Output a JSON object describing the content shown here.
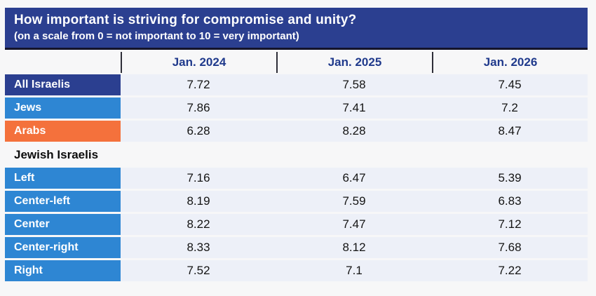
{
  "header": {
    "title": "How important is striving for compromise and unity?",
    "subtitle": "(on a scale from 0 = not important to 10 = very important)"
  },
  "columns": [
    "Jan. 2024",
    "Jan. 2025",
    "Jan. 2026"
  ],
  "rows": [
    {
      "label": "All Israelis",
      "type": "data",
      "label_color": "#2b3f90",
      "values": [
        "7.72",
        "7.58",
        "7.45"
      ]
    },
    {
      "label": "Jews",
      "type": "data",
      "label_color": "#2e86d3",
      "values": [
        "7.86",
        "7.41",
        "7.2"
      ]
    },
    {
      "label": "Arabs",
      "type": "data",
      "label_color": "#f4713c",
      "values": [
        "6.28",
        "8.28",
        "8.47"
      ]
    },
    {
      "label": "Jewish Israelis",
      "type": "section",
      "label_color": "none",
      "values": []
    },
    {
      "label": "Left",
      "type": "data",
      "label_color": "#2e86d3",
      "values": [
        "7.16",
        "6.47",
        "5.39"
      ]
    },
    {
      "label": "Center-left",
      "type": "data",
      "label_color": "#2e86d3",
      "values": [
        "8.19",
        "7.59",
        "6.83"
      ]
    },
    {
      "label": "Center",
      "type": "data",
      "label_color": "#2e86d3",
      "values": [
        "8.22",
        "7.47",
        "7.12"
      ]
    },
    {
      "label": "Center-right",
      "type": "data",
      "label_color": "#2e86d3",
      "values": [
        "8.33",
        "8.12",
        "7.68"
      ]
    },
    {
      "label": "Right",
      "type": "data",
      "label_color": "#2e86d3",
      "values": [
        "7.52",
        "7.1",
        "7.22"
      ]
    }
  ],
  "colors": {
    "banner_background": "#2b3f90",
    "banner_text": "#ffffff",
    "column_header_text": "#203a8c",
    "column_divider": "#2e2e38",
    "data_cell_background": "#edf0f8",
    "page_background": "#f7f7f8",
    "navy_row": "#2b3f90",
    "blue_row": "#2e86d3",
    "orange_row": "#f4713c"
  },
  "chart_data": {
    "type": "table",
    "title": "How important is striving for compromise and unity?",
    "subtitle": "(on a scale from 0 = not important to 10 = very important)",
    "scale": {
      "min": 0,
      "min_label": "not important",
      "max": 10,
      "max_label": "very important"
    },
    "columns": [
      "Jan. 2024",
      "Jan. 2025",
      "Jan. 2026"
    ],
    "rows": [
      {
        "label": "All Israelis",
        "group": "overall",
        "values": [
          7.72,
          7.58,
          7.45
        ]
      },
      {
        "label": "Jews",
        "group": "overall",
        "values": [
          7.86,
          7.41,
          7.2
        ]
      },
      {
        "label": "Arabs",
        "group": "overall",
        "values": [
          6.28,
          8.28,
          8.47
        ]
      },
      {
        "label": "Left",
        "group": "Jewish Israelis",
        "values": [
          7.16,
          6.47,
          5.39
        ]
      },
      {
        "label": "Center-left",
        "group": "Jewish Israelis",
        "values": [
          8.19,
          7.59,
          6.83
        ]
      },
      {
        "label": "Center",
        "group": "Jewish Israelis",
        "values": [
          8.22,
          7.47,
          7.12
        ]
      },
      {
        "label": "Center-right",
        "group": "Jewish Israelis",
        "values": [
          8.33,
          8.12,
          7.68
        ]
      },
      {
        "label": "Right",
        "group": "Jewish Israelis",
        "values": [
          7.52,
          7.1,
          7.22
        ]
      }
    ]
  }
}
